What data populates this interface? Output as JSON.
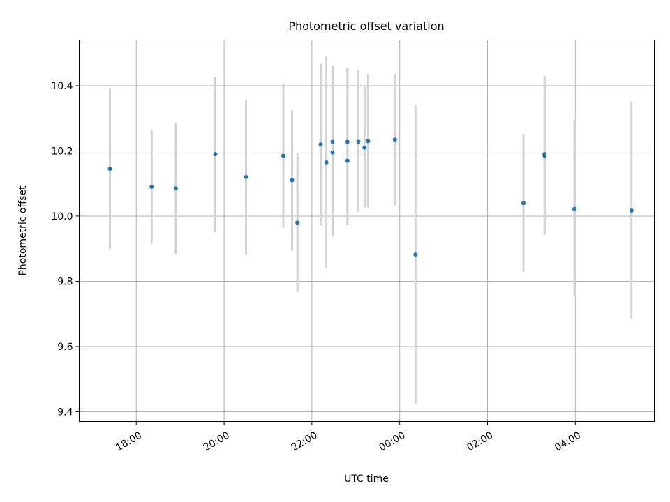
{
  "chart_data": {
    "type": "scatter",
    "title": "Photometric offset variation",
    "xlabel": "UTC time",
    "ylabel": "Photometric offset",
    "x_unit": "hours since 00:00 (negative = previous day)",
    "xlim": [
      -7.3,
      5.8
    ],
    "ylim": [
      9.37,
      10.54
    ],
    "grid": true,
    "legend": "none",
    "x_ticks": [
      {
        "value": -6,
        "label": "18:00"
      },
      {
        "value": -4,
        "label": "20:00"
      },
      {
        "value": -2,
        "label": "22:00"
      },
      {
        "value": 0,
        "label": "00:00"
      },
      {
        "value": 2,
        "label": "02:00"
      },
      {
        "value": 4,
        "label": "04:00"
      }
    ],
    "y_ticks": [
      {
        "value": 9.4,
        "label": "9.4"
      },
      {
        "value": 9.6,
        "label": "9.6"
      },
      {
        "value": 9.8,
        "label": "9.8"
      },
      {
        "value": 10.0,
        "label": "10.0"
      },
      {
        "value": 10.2,
        "label": "10.2"
      },
      {
        "value": 10.4,
        "label": "10.4"
      }
    ],
    "colors": {
      "point": "#1f77b4",
      "errorbar": "#d3d3d3",
      "grid": "#b0b0b0"
    },
    "points": [
      {
        "x": -6.6,
        "y": 10.145,
        "lo": 9.9,
        "hi": 10.393
      },
      {
        "x": -5.65,
        "y": 10.09,
        "lo": 9.915,
        "hi": 10.265
      },
      {
        "x": -5.1,
        "y": 10.085,
        "lo": 9.884,
        "hi": 10.286
      },
      {
        "x": -4.2,
        "y": 10.19,
        "lo": 9.95,
        "hi": 10.428
      },
      {
        "x": -3.5,
        "y": 10.12,
        "lo": 9.882,
        "hi": 10.356
      },
      {
        "x": -2.65,
        "y": 10.185,
        "lo": 9.965,
        "hi": 10.407
      },
      {
        "x": -2.45,
        "y": 10.11,
        "lo": 9.895,
        "hi": 10.325
      },
      {
        "x": -2.33,
        "y": 9.98,
        "lo": 9.767,
        "hi": 10.193
      },
      {
        "x": -1.8,
        "y": 10.22,
        "lo": 9.972,
        "hi": 10.467
      },
      {
        "x": -1.67,
        "y": 10.165,
        "lo": 9.84,
        "hi": 10.489
      },
      {
        "x": -1.53,
        "y": 10.195,
        "lo": 9.938,
        "hi": 10.461
      },
      {
        "x": -1.53,
        "y": 10.228,
        "lo": 9.938,
        "hi": 10.461
      },
      {
        "x": -1.19,
        "y": 10.17,
        "lo": 9.972,
        "hi": 10.453
      },
      {
        "x": -1.19,
        "y": 10.228,
        "lo": 9.972,
        "hi": 10.453
      },
      {
        "x": -0.94,
        "y": 10.228,
        "lo": 10.013,
        "hi": 10.447
      },
      {
        "x": -0.8,
        "y": 10.21,
        "lo": 10.026,
        "hi": 10.397
      },
      {
        "x": -0.72,
        "y": 10.23,
        "lo": 10.026,
        "hi": 10.436
      },
      {
        "x": -0.11,
        "y": 10.235,
        "lo": 10.033,
        "hi": 10.437
      },
      {
        "x": 0.36,
        "y": 9.882,
        "lo": 9.425,
        "hi": 10.34
      },
      {
        "x": 2.82,
        "y": 10.04,
        "lo": 9.83,
        "hi": 10.252
      },
      {
        "x": 3.3,
        "y": 10.185,
        "lo": 9.943,
        "hi": 10.43
      },
      {
        "x": 3.3,
        "y": 10.19,
        "lo": 9.943,
        "hi": 10.43
      },
      {
        "x": 3.98,
        "y": 10.022,
        "lo": 9.755,
        "hi": 10.294
      },
      {
        "x": 5.28,
        "y": 10.017,
        "lo": 9.686,
        "hi": 10.352
      }
    ]
  }
}
